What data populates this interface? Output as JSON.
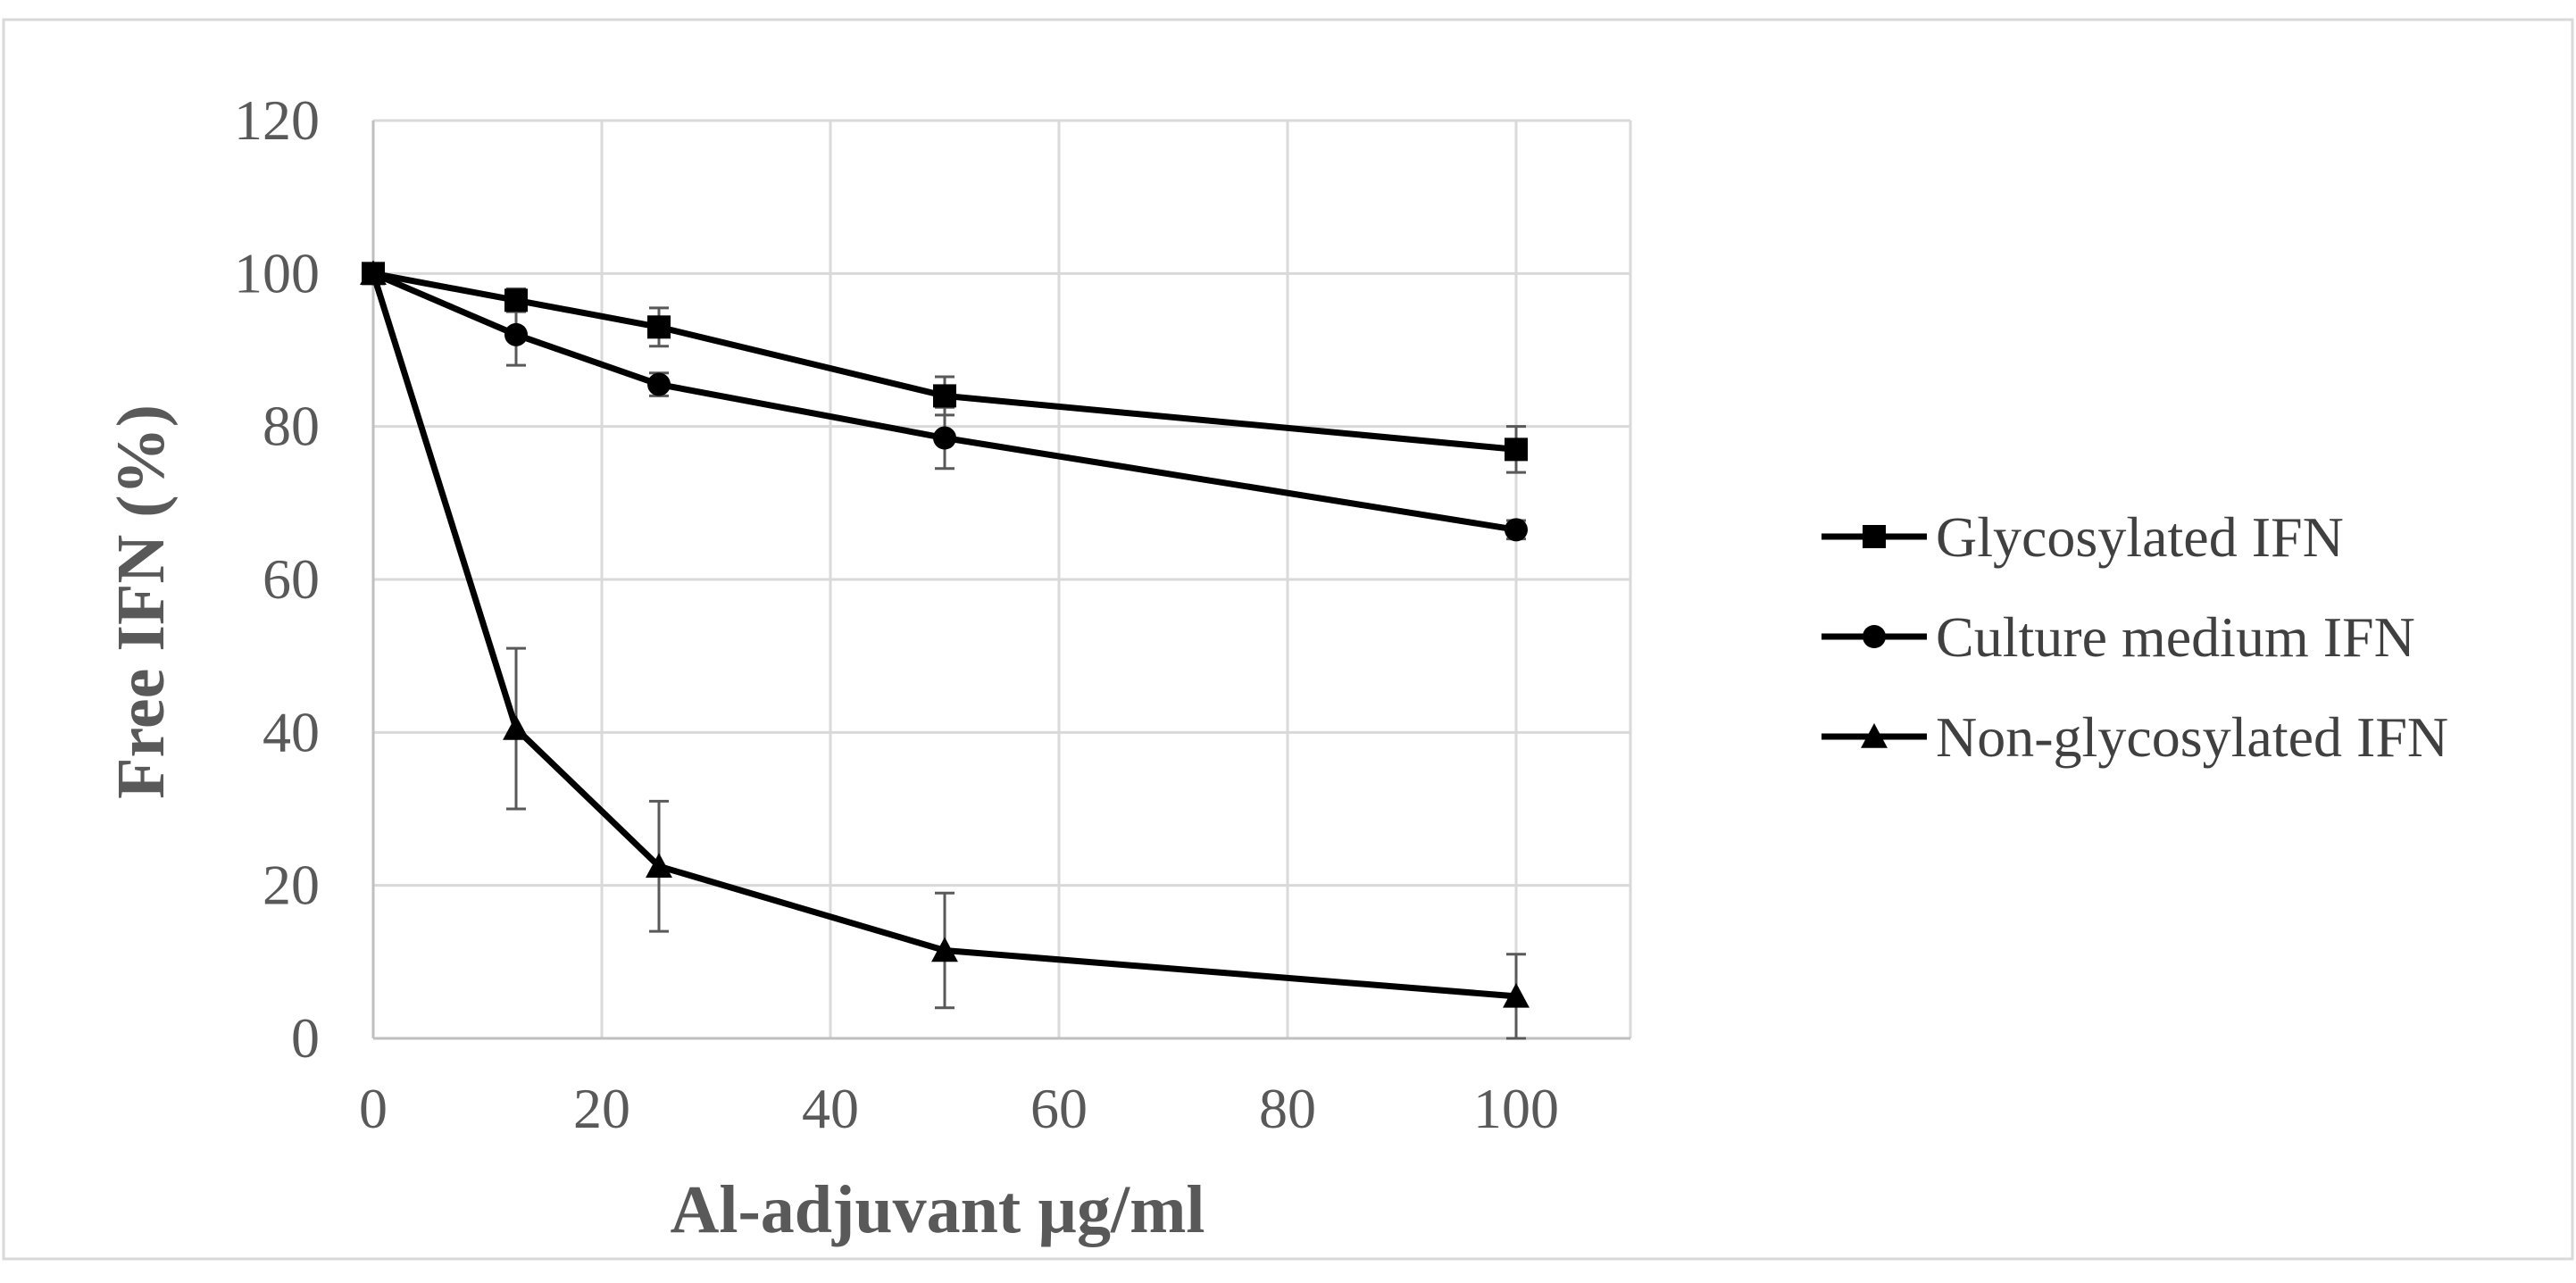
{
  "chart_data": {
    "type": "line",
    "title": "",
    "xlabel": "Al-adjuvant µg/ml",
    "ylabel": "Free IFN (%)",
    "xlim": [
      0,
      110
    ],
    "ylim": [
      0,
      120
    ],
    "xticks": [
      0,
      20,
      40,
      60,
      80,
      100
    ],
    "yticks": [
      0,
      20,
      40,
      60,
      80,
      100,
      120
    ],
    "xtick_labels": [
      "0",
      "20",
      "40",
      "60",
      "80",
      "100"
    ],
    "ytick_labels": [
      "0",
      "20",
      "40",
      "60",
      "80",
      "100",
      "120"
    ],
    "grid": true,
    "legend_position": "right",
    "x": [
      0,
      12.5,
      25,
      50,
      100
    ],
    "series": [
      {
        "name": "Glycosylated IFN",
        "marker": "square",
        "values": [
          100,
          96.5,
          93,
          84,
          77
        ],
        "error": [
          0,
          1.5,
          2.5,
          2.5,
          3
        ]
      },
      {
        "name": "Culture medium IFN",
        "marker": "circle",
        "values": [
          100,
          92,
          85.5,
          78.5,
          66.5
        ],
        "error": [
          0,
          4,
          1.5,
          4,
          1.2
        ]
      },
      {
        "name": "Non-glycosylated IFN",
        "marker": "triangle",
        "values": [
          100,
          40.5,
          22.5,
          11.5,
          5.5
        ],
        "error": [
          0,
          10.5,
          8.5,
          7.5,
          5.5
        ]
      }
    ],
    "colors": {
      "line": "#000000",
      "grid": "#d9d9d9",
      "axis": "#bfbfbf",
      "tick_text": "#595959",
      "title_text": "#595959",
      "legend_text": "#404040",
      "error_bar": "#595959",
      "frame": "#d9d9d9"
    }
  }
}
